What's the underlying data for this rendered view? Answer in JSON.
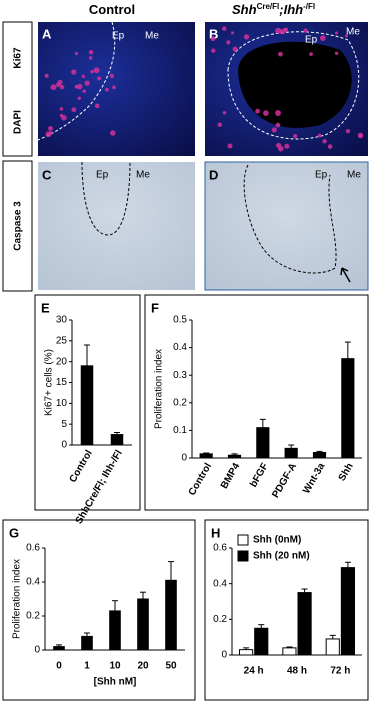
{
  "figure": {
    "columns": [
      {
        "parts": [
          {
            "text": "Control"
          }
        ]
      },
      {
        "parts": [
          {
            "text": "Shh",
            "italic": true
          },
          {
            "text": "Cre/Fl",
            "sup": true
          },
          {
            "text": ";",
            "italic": true
          },
          {
            "text": "Ihh",
            "italic": true
          },
          {
            "text": "-/Fl",
            "sup": true
          }
        ]
      }
    ],
    "rows": [
      {
        "stains": [
          {
            "text": "Ki67",
            "color": "#e0304a"
          },
          {
            "text": "DAPI",
            "color": "#2f7fd8"
          }
        ]
      },
      {
        "stains": [
          {
            "text": "Caspase 3",
            "color": "#b0443c"
          }
        ]
      }
    ],
    "panels": [
      {
        "letter": "A",
        "labels": [
          "Ep",
          "Me"
        ]
      },
      {
        "letter": "B",
        "labels": [
          "Ep",
          "Me"
        ]
      },
      {
        "letter": "C",
        "labels": [
          "Ep",
          "Me"
        ]
      },
      {
        "letter": "D",
        "labels": [
          "Ep",
          "Me"
        ]
      }
    ]
  },
  "chart_data": [
    {
      "type": "bar",
      "letter": "E",
      "y_label": "Ki67+ cells (%)",
      "categories": [
        "Control",
        "ShhCre/Fl; Ihh-/Fl"
      ],
      "series": [
        {
          "color": "#000000",
          "values": [
            19,
            2.5
          ],
          "errors": [
            5,
            0.5
          ]
        }
      ],
      "ylim": [
        0,
        30
      ],
      "yticks": [
        0,
        5,
        10,
        15,
        20,
        25,
        30
      ]
    },
    {
      "type": "bar",
      "letter": "F",
      "y_label": "Proliferation index",
      "categories": [
        "Control",
        "BMP4",
        "bFGF",
        "PDGF-A",
        "Wnt-3a",
        "Shh"
      ],
      "series": [
        {
          "color": "#000000",
          "values": [
            0.015,
            0.01,
            0.11,
            0.035,
            0.02,
            0.36
          ],
          "errors": [
            0.003,
            0.005,
            0.03,
            0.012,
            0.004,
            0.06
          ]
        }
      ],
      "ylim": [
        0,
        0.5
      ],
      "yticks": [
        0,
        0.1,
        0.2,
        0.3,
        0.4,
        0.5
      ]
    },
    {
      "type": "bar",
      "letter": "G",
      "y_label": "Proliferation index",
      "x_label": "[Shh nM]",
      "categories": [
        "0",
        "1",
        "10",
        "20",
        "50"
      ],
      "series": [
        {
          "color": "#000000",
          "values": [
            0.02,
            0.08,
            0.23,
            0.3,
            0.41
          ],
          "errors": [
            0.01,
            0.02,
            0.06,
            0.04,
            0.11
          ]
        }
      ],
      "ylim": [
        0,
        0.6
      ],
      "yticks": [
        0,
        0.2,
        0.4,
        0.6
      ]
    },
    {
      "type": "bar",
      "letter": "H",
      "legend": "top-left",
      "categories": [
        "24 h",
        "48 h",
        "72 h"
      ],
      "series": [
        {
          "name": "Shh (0nM)",
          "color": "#ffffff",
          "values": [
            0.03,
            0.04,
            0.09
          ],
          "errors": [
            0.01,
            0.005,
            0.02
          ]
        },
        {
          "name": "Shh (20 nM)",
          "color": "#000000",
          "values": [
            0.15,
            0.35,
            0.49
          ],
          "errors": [
            0.02,
            0.02,
            0.03
          ]
        }
      ],
      "ylim": [
        0,
        0.6
      ],
      "yticks": [
        0,
        0.2,
        0.4,
        0.6
      ]
    }
  ]
}
